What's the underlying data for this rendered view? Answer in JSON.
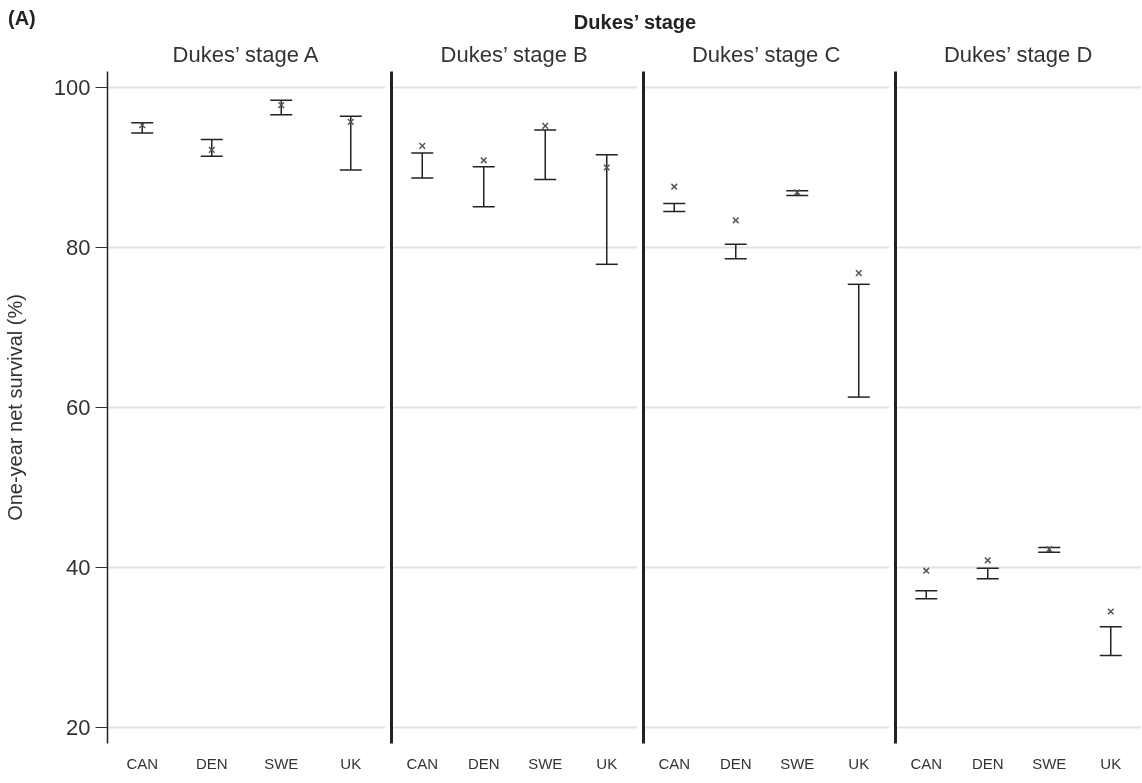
{
  "chart_data": [
    {
      "type": "scatter",
      "title": "Dukes’ stage A",
      "ylabel": "One-year net survival (%)",
      "annotations": [
        "(A)",
        "Dukes’ stage"
      ],
      "categories": [
        "CAN",
        "DEN",
        "SWE",
        "UK"
      ],
      "values": [
        95.3,
        92.2,
        97.8,
        95.7
      ],
      "errors": [
        [
          94.3,
          95.6
        ],
        [
          91.4,
          93.5
        ],
        [
          96.6,
          98.4
        ],
        [
          89.7,
          96.4
        ]
      ],
      "color": "#555555",
      "marker": "cross",
      "ylim": [
        18,
        102
      ],
      "yticks": [
        20,
        40,
        60,
        80,
        100
      ],
      "grid": "y"
    },
    {
      "type": "scatter",
      "title": "Dukes’ stage B",
      "categories": [
        "CAN",
        "DEN",
        "SWE",
        "UK"
      ],
      "values": [
        92.7,
        90.9,
        95.2,
        90.0
      ],
      "errors": [
        [
          88.7,
          91.8
        ],
        [
          85.1,
          90.1
        ],
        [
          88.5,
          94.7
        ],
        [
          77.9,
          91.6
        ]
      ],
      "color": "#555555",
      "marker": "cross",
      "ylim": [
        18,
        102
      ],
      "yticks": [
        20,
        40,
        60,
        80,
        100
      ],
      "grid": "y",
      "tick_labels": "x"
    },
    {
      "type": "scatter",
      "title": "Dukes’ stage C",
      "categories": [
        "CAN",
        "DEN",
        "SWE",
        "UK"
      ],
      "values": [
        87.6,
        83.4,
        86.9,
        76.8
      ],
      "errors": [
        [
          84.5,
          85.5
        ],
        [
          78.6,
          80.4
        ],
        [
          86.5,
          87.1
        ],
        [
          61.3,
          75.4
        ]
      ],
      "color": "#555555",
      "marker": "cross",
      "ylim": [
        18,
        102
      ],
      "yticks": [
        20,
        40,
        60,
        80,
        100
      ],
      "grid": "y",
      "tick_labels": "x"
    },
    {
      "type": "scatter",
      "title": "Dukes’ stage D",
      "categories": [
        "CAN",
        "DEN",
        "SWE",
        "UK"
      ],
      "values": [
        39.6,
        40.9,
        42.3,
        34.5
      ],
      "errors": [
        [
          36.1,
          37.1
        ],
        [
          38.6,
          39.9
        ],
        [
          41.9,
          42.5
        ],
        [
          29.0,
          32.6
        ]
      ],
      "color": "#555555",
      "marker": "cross",
      "ylim": [
        18,
        102
      ],
      "yticks": [
        20,
        40,
        60,
        80,
        100
      ],
      "grid": "y",
      "tick_labels": "x"
    }
  ]
}
